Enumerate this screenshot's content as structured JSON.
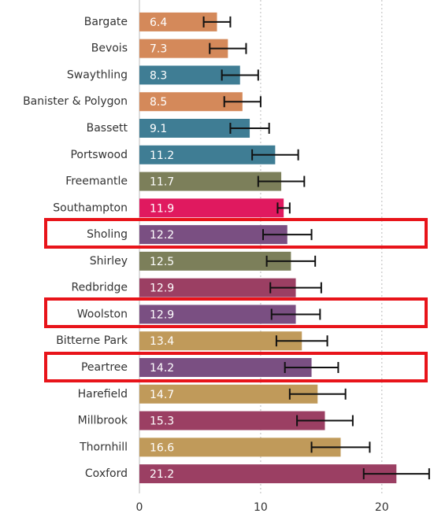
{
  "chart_data": {
    "type": "bar",
    "categories": [
      "Bargate",
      "Bevois",
      "Swaythling",
      "Banister & Polygon",
      "Bassett",
      "Portswood",
      "Freemantle",
      "Southampton",
      "Sholing",
      "Shirley",
      "Redbridge",
      "Woolston",
      "Bitterne Park",
      "Peartree",
      "Harefield",
      "Millbrook",
      "Thornhill",
      "Coxford"
    ],
    "values": [
      6.4,
      7.3,
      8.3,
      8.5,
      9.1,
      11.2,
      11.7,
      11.9,
      12.2,
      12.5,
      12.9,
      12.9,
      13.4,
      14.2,
      14.7,
      15.3,
      16.6,
      21.2
    ],
    "errors": [
      1.1,
      1.5,
      1.5,
      1.5,
      1.6,
      1.9,
      1.9,
      0.5,
      2.0,
      2.0,
      2.1,
      2.0,
      2.1,
      2.2,
      2.3,
      2.3,
      2.4,
      2.7
    ],
    "colors": [
      "#d4895a",
      "#d4895a",
      "#3f7d94",
      "#d4895a",
      "#3f7d94",
      "#3f7d94",
      "#7c7f5a",
      "#e0195f",
      "#7a4f82",
      "#7c7f5a",
      "#9b3f63",
      "#7a4f82",
      "#c09a5a",
      "#7a4f82",
      "#c09a5a",
      "#9b3f63",
      "#c09a5a",
      "#9b3f63"
    ],
    "xlim": [
      0,
      24.3
    ],
    "xticks": [
      0,
      10,
      20
    ],
    "grid": true
  }
}
